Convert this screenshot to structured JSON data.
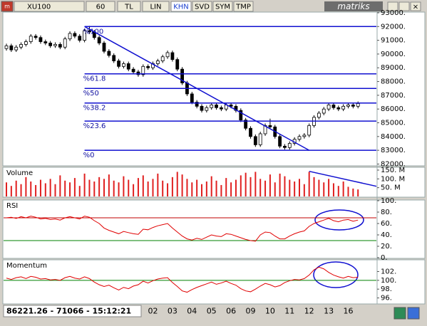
{
  "toolbar": {
    "symbol": "XU100",
    "period": "60",
    "buttons": [
      "TL",
      "LIN",
      "KHN",
      "SVD",
      "SYM",
      "TMP"
    ],
    "active": 2,
    "logo": "matriks"
  },
  "status": "86221.26 - 71066 - 15:12:21",
  "chart_data": [
    {
      "type": "candlestick",
      "categories": [
        null,
        null,
        null,
        null,
        null,
        null,
        null,
        null,
        null,
        null,
        null,
        null,
        null,
        null,
        null,
        null,
        null,
        null,
        null,
        null,
        null,
        null,
        null,
        null,
        null,
        null,
        null,
        null,
        null,
        null,
        "02",
        null,
        null,
        null,
        "03",
        null,
        null,
        null,
        "04",
        null,
        null,
        null,
        "05",
        null,
        null,
        null,
        "06",
        null,
        null,
        null,
        "09",
        null,
        null,
        null,
        "10",
        null,
        null,
        null,
        "11",
        null,
        null,
        null,
        "12",
        null,
        null,
        null,
        "13",
        null,
        null,
        null,
        "16",
        null,
        null
      ],
      "open": [
        90400,
        90600,
        90300,
        90500,
        90700,
        90900,
        91300,
        91200,
        90900,
        90800,
        90600,
        90700,
        90500,
        91100,
        91500,
        91300,
        91000,
        91700,
        91600,
        91200,
        90800,
        90200,
        89900,
        89500,
        89100,
        89300,
        88900,
        88700,
        88500,
        89100,
        89000,
        89300,
        89500,
        89800,
        90100,
        89600,
        88900,
        87900,
        87100,
        86500,
        86200,
        85900,
        86100,
        86300,
        86100,
        86000,
        86300,
        86200,
        85900,
        85200,
        84600,
        84000,
        83400,
        84200,
        84800,
        84700,
        84000,
        83300,
        83200,
        83500,
        83800,
        84000,
        84100,
        84800,
        85400,
        85700,
        86000,
        86300,
        86100,
        86000,
        86200,
        86300,
        86200
      ],
      "high": [
        90750,
        90750,
        90650,
        90850,
        91050,
        91450,
        91450,
        91350,
        91050,
        90950,
        90850,
        90850,
        91250,
        91650,
        91650,
        91450,
        91850,
        92050,
        91750,
        91350,
        90950,
        90350,
        90050,
        89650,
        89450,
        89450,
        89050,
        88850,
        89250,
        89250,
        89450,
        89650,
        89950,
        90250,
        90250,
        89750,
        89050,
        88050,
        87250,
        86650,
        86350,
        86250,
        86450,
        86450,
        86250,
        86450,
        86450,
        86350,
        86050,
        85350,
        84750,
        84150,
        84350,
        84950,
        85300,
        84850,
        84150,
        83450,
        83650,
        83950,
        84150,
        84250,
        84950,
        85550,
        85850,
        86150,
        86450,
        86450,
        86250,
        86350,
        86450,
        86450,
        86550
      ],
      "low": [
        90250,
        90150,
        90150,
        90350,
        90550,
        90750,
        91050,
        90750,
        90650,
        90450,
        90450,
        90350,
        90350,
        90950,
        91150,
        90850,
        90850,
        91450,
        91050,
        90650,
        90050,
        89750,
        89350,
        88950,
        88950,
        88750,
        88550,
        88350,
        88350,
        88850,
        88850,
        89150,
        89350,
        89650,
        89450,
        88750,
        87750,
        86950,
        86350,
        86050,
        85750,
        85750,
        85950,
        85950,
        85850,
        85850,
        86050,
        85750,
        85050,
        84450,
        83850,
        83250,
        83250,
        84050,
        84550,
        83850,
        83150,
        83050,
        83050,
        83350,
        83650,
        83850,
        83950,
        84650,
        85250,
        85550,
        85850,
        85950,
        85850,
        85850,
        86050,
        86050,
        86050
      ],
      "close": [
        90600,
        90300,
        90500,
        90700,
        90900,
        91300,
        91200,
        90900,
        90800,
        90600,
        90700,
        90500,
        91100,
        91500,
        91300,
        91000,
        91700,
        91600,
        91200,
        90800,
        90200,
        89900,
        89500,
        89100,
        89300,
        88900,
        88700,
        88500,
        89100,
        89000,
        89300,
        89500,
        89800,
        90100,
        89600,
        88900,
        87900,
        87100,
        86500,
        86200,
        85900,
        86100,
        86300,
        86100,
        86000,
        86300,
        86200,
        85900,
        85200,
        84600,
        84000,
        83400,
        84200,
        84800,
        84700,
        84000,
        83300,
        83200,
        83500,
        83800,
        84000,
        84100,
        84800,
        85400,
        85700,
        86000,
        86300,
        86100,
        86000,
        86200,
        86300,
        86200,
        86400
      ],
      "ylim": [
        81920,
        93050
      ],
      "yticks": [
        {
          "value": 82000,
          "label": "82000."
        },
        {
          "value": 83000,
          "label": "83000."
        },
        {
          "value": 84000,
          "label": "84000."
        },
        {
          "value": 85000,
          "label": "85000."
        },
        {
          "value": 86000,
          "label": "86000."
        },
        {
          "value": 87000,
          "label": "87000."
        },
        {
          "value": 88000,
          "label": "88000."
        },
        {
          "value": 89000,
          "label": "89000."
        },
        {
          "value": 90000,
          "label": "90000."
        },
        {
          "value": 91000,
          "label": "91000."
        },
        {
          "value": 92000,
          "label": "92000."
        },
        {
          "value": 93000,
          "label": "93000."
        }
      ],
      "fib_levels": [
        {
          "value": 92000,
          "label": "%100"
        },
        {
          "value": 88562,
          "label": "%61.8"
        },
        {
          "value": 87500,
          "label": "%50"
        },
        {
          "value": 86438,
          "label": "%38.2"
        },
        {
          "value": 85124,
          "label": "%23.6"
        },
        {
          "value": 83000,
          "label": "%0"
        }
      ],
      "trendline": {
        "x": [
          16,
          62
        ],
        "y": [
          92000,
          83000
        ]
      },
      "annotation_color": "#1010d0"
    },
    {
      "type": "bar",
      "title": "Volume",
      "values": [
        80,
        60,
        90,
        70,
        110,
        85,
        65,
        95,
        75,
        100,
        70,
        120,
        90,
        80,
        105,
        60,
        130,
        95,
        85,
        110,
        100,
        125,
        90,
        80,
        115,
        95,
        70,
        105,
        120,
        85,
        100,
        130,
        90,
        75,
        110,
        140,
        125,
        100,
        80,
        95,
        70,
        85,
        115,
        90,
        65,
        105,
        80,
        95,
        120,
        135,
        110,
        140,
        100,
        90,
        125,
        80,
        130,
        115,
        95,
        85,
        100,
        70,
        140,
        110,
        95,
        80,
        100,
        75,
        60,
        85,
        55,
        45,
        40
      ],
      "color": "#e02020",
      "ylim": [
        0,
        162
      ],
      "yticks": [
        {
          "value": 50,
          "label": "50. M"
        },
        {
          "value": 100,
          "label": "100. M"
        },
        {
          "value": 150,
          "label": "150. M"
        }
      ],
      "trendline": {
        "x": [
          62,
          76
        ],
        "y": [
          143,
          58
        ]
      },
      "annotation_color": "#1010d0"
    },
    {
      "type": "line",
      "title": "RSI",
      "values": [
        70,
        71,
        69,
        72,
        70,
        73,
        71,
        68,
        69,
        67,
        68,
        66,
        70,
        72,
        70,
        68,
        73,
        71,
        65,
        60,
        52,
        48,
        45,
        42,
        46,
        44,
        42,
        41,
        50,
        49,
        53,
        56,
        58,
        60,
        52,
        45,
        38,
        33,
        31,
        34,
        32,
        36,
        40,
        38,
        37,
        42,
        41,
        38,
        35,
        32,
        30,
        29,
        40,
        45,
        44,
        38,
        33,
        33,
        38,
        42,
        45,
        47,
        55,
        60,
        63,
        66,
        69,
        65,
        63,
        66,
        67,
        64,
        66
      ],
      "color": "#e00000",
      "ylim": [
        0,
        100
      ],
      "yticks": [
        {
          "value": 0,
          "label": "0."
        },
        {
          "value": 20,
          "label": "20."
        },
        {
          "value": 40,
          "label": "40."
        },
        {
          "value": 60,
          "label": "60."
        },
        {
          "value": 80,
          "label": "80."
        },
        {
          "value": 100,
          "label": "100."
        }
      ],
      "hlines": [
        {
          "value": 70,
          "color": "#c00000"
        },
        {
          "value": 30,
          "color": "#008000"
        }
      ]
    },
    {
      "type": "line",
      "title": "Momentum",
      "values": [
        100.5,
        100.2,
        100.6,
        100.8,
        100.4,
        100.9,
        100.7,
        100.3,
        100.4,
        100.1,
        100.2,
        100.0,
        100.6,
        100.9,
        100.5,
        100.3,
        100.8,
        100.4,
        99.6,
        99.0,
        98.6,
        98.9,
        98.3,
        97.8,
        98.4,
        98.1,
        98.7,
        99.0,
        99.8,
        99.4,
        99.9,
        100.3,
        100.5,
        100.6,
        99.5,
        98.6,
        97.6,
        97.3,
        97.9,
        98.4,
        98.8,
        99.2,
        99.6,
        99.1,
        99.4,
        99.8,
        99.3,
        98.9,
        98.1,
        97.6,
        97.4,
        98.0,
        98.7,
        99.3,
        99.0,
        98.5,
        98.8,
        99.5,
        99.9,
        100.2,
        100.1,
        100.4,
        101.2,
        102.4,
        103.0,
        102.6,
        101.8,
        101.2,
        100.8,
        100.5,
        100.9,
        100.6,
        100.7
      ],
      "color": "#e00000",
      "ylim": [
        94.8,
        104.5
      ],
      "yticks": [
        {
          "value": 96,
          "label": "96."
        },
        {
          "value": 98,
          "label": "98."
        },
        {
          "value": 100,
          "label": "100."
        },
        {
          "value": 102,
          "label": "102."
        }
      ],
      "hlines": [
        {
          "value": 100,
          "color": "#008000"
        }
      ]
    }
  ]
}
